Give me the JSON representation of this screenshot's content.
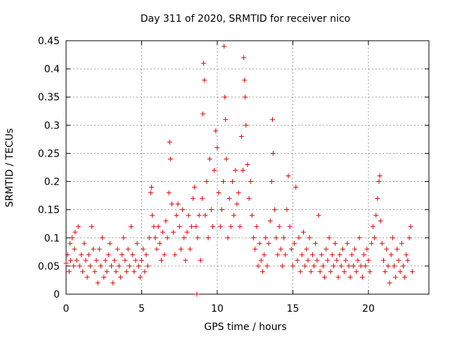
{
  "chart_data": {
    "type": "scatter",
    "title": "Day 311 of 2020, SRMTID for receiver nico",
    "xlabel": "GPS time / hours",
    "ylabel": "SRMTID / TECUs",
    "xlim": [
      0,
      24
    ],
    "ylim": [
      0,
      0.45
    ],
    "xticks": [
      0,
      5,
      10,
      15,
      20
    ],
    "yticks": [
      0,
      0.05,
      0.1,
      0.15,
      0.2,
      0.25,
      0.3,
      0.35,
      0.4,
      0.45
    ],
    "xtick_labels": [
      "0",
      "5",
      "10",
      "15",
      "20"
    ],
    "ytick_labels": [
      "0",
      "0.05",
      "0.1",
      "0.15",
      "0.2",
      "0.25",
      "0.3",
      "0.35",
      "0.4",
      "0.45"
    ],
    "marker": "+",
    "color": "#e00000",
    "grid": true,
    "series": [
      {
        "name": "SRMTID",
        "points": [
          [
            0.0,
            0.055
          ],
          [
            0.1,
            0.07
          ],
          [
            0.2,
            0.04
          ],
          [
            0.25,
            0.09
          ],
          [
            0.3,
            0.06
          ],
          [
            0.4,
            0.1
          ],
          [
            0.5,
            0.05
          ],
          [
            0.55,
            0.08
          ],
          [
            0.6,
            0.11
          ],
          [
            0.7,
            0.06
          ],
          [
            0.8,
            0.12
          ],
          [
            0.9,
            0.05
          ],
          [
            1.0,
            0.07
          ],
          [
            1.1,
            0.04
          ],
          [
            1.2,
            0.09
          ],
          [
            1.3,
            0.06
          ],
          [
            1.4,
            0.03
          ],
          [
            1.5,
            0.07
          ],
          [
            1.6,
            0.05
          ],
          [
            1.7,
            0.12
          ],
          [
            1.8,
            0.08
          ],
          [
            1.9,
            0.04
          ],
          [
            2.0,
            0.06
          ],
          [
            2.1,
            0.02
          ],
          [
            2.2,
            0.08
          ],
          [
            2.3,
            0.05
          ],
          [
            2.4,
            0.1
          ],
          [
            2.5,
            0.03
          ],
          [
            2.6,
            0.06
          ],
          [
            2.7,
            0.04
          ],
          [
            2.8,
            0.07
          ],
          [
            2.9,
            0.09
          ],
          [
            3.0,
            0.05
          ],
          [
            3.1,
            0.02
          ],
          [
            3.2,
            0.06
          ],
          [
            3.3,
            0.04
          ],
          [
            3.4,
            0.08
          ],
          [
            3.5,
            0.05
          ],
          [
            3.6,
            0.03
          ],
          [
            3.7,
            0.07
          ],
          [
            3.8,
            0.1
          ],
          [
            3.9,
            0.06
          ],
          [
            4.0,
            0.04
          ],
          [
            4.1,
            0.08
          ],
          [
            4.2,
            0.05
          ],
          [
            4.3,
            0.12
          ],
          [
            4.4,
            0.07
          ],
          [
            4.5,
            0.04
          ],
          [
            4.6,
            0.06
          ],
          [
            4.7,
            0.09
          ],
          [
            4.8,
            0.05
          ],
          [
            4.9,
            0.03
          ],
          [
            5.0,
            0.06
          ],
          [
            5.1,
            0.08
          ],
          [
            5.2,
            0.04
          ],
          [
            5.3,
            0.07
          ],
          [
            5.4,
            0.05
          ],
          [
            5.5,
            0.1
          ],
          [
            5.6,
            0.18
          ],
          [
            5.65,
            0.19
          ],
          [
            5.7,
            0.14
          ],
          [
            5.8,
            0.12
          ],
          [
            5.9,
            0.1
          ],
          [
            6.0,
            0.08
          ],
          [
            6.1,
            0.12
          ],
          [
            6.2,
            0.09
          ],
          [
            6.3,
            0.06
          ],
          [
            6.4,
            0.11
          ],
          [
            6.5,
            0.07
          ],
          [
            6.6,
            0.13
          ],
          [
            6.7,
            0.1
          ],
          [
            6.8,
            0.18
          ],
          [
            6.85,
            0.27
          ],
          [
            6.9,
            0.24
          ],
          [
            7.0,
            0.16
          ],
          [
            7.1,
            0.11
          ],
          [
            7.2,
            0.07
          ],
          [
            7.3,
            0.14
          ],
          [
            7.4,
            0.16
          ],
          [
            7.5,
            0.12
          ],
          [
            7.6,
            0.08
          ],
          [
            7.7,
            0.15
          ],
          [
            7.8,
            0.1
          ],
          [
            7.9,
            0.06
          ],
          [
            8.0,
            0.11
          ],
          [
            8.1,
            0.14
          ],
          [
            8.2,
            0.08
          ],
          [
            8.3,
            0.12
          ],
          [
            8.4,
            0.17
          ],
          [
            8.5,
            0.19
          ],
          [
            8.6,
            0.12
          ],
          [
            8.65,
            0.0
          ],
          [
            8.7,
            0.1
          ],
          [
            8.8,
            0.14
          ],
          [
            8.9,
            0.06
          ],
          [
            9.0,
            0.17
          ],
          [
            9.05,
            0.32
          ],
          [
            9.1,
            0.41
          ],
          [
            9.15,
            0.38
          ],
          [
            9.2,
            0.14
          ],
          [
            9.3,
            0.2
          ],
          [
            9.4,
            0.1
          ],
          [
            9.5,
            0.24
          ],
          [
            9.6,
            0.15
          ],
          [
            9.7,
            0.12
          ],
          [
            9.8,
            0.22
          ],
          [
            9.9,
            0.29
          ],
          [
            10.0,
            0.26
          ],
          [
            10.1,
            0.18
          ],
          [
            10.2,
            0.12
          ],
          [
            10.3,
            0.15
          ],
          [
            10.4,
            0.2
          ],
          [
            10.45,
            0.44
          ],
          [
            10.5,
            0.35
          ],
          [
            10.55,
            0.31
          ],
          [
            10.6,
            0.24
          ],
          [
            10.7,
            0.1
          ],
          [
            10.8,
            0.17
          ],
          [
            10.9,
            0.12
          ],
          [
            11.0,
            0.2
          ],
          [
            11.1,
            0.14
          ],
          [
            11.2,
            0.22
          ],
          [
            11.3,
            0.16
          ],
          [
            11.4,
            0.18
          ],
          [
            11.5,
            0.12
          ],
          [
            11.6,
            0.28
          ],
          [
            11.7,
            0.22
          ],
          [
            11.75,
            0.42
          ],
          [
            11.8,
            0.38
          ],
          [
            11.85,
            0.35
          ],
          [
            11.9,
            0.3
          ],
          [
            12.0,
            0.23
          ],
          [
            12.1,
            0.17
          ],
          [
            12.2,
            0.2
          ],
          [
            12.3,
            0.14
          ],
          [
            12.4,
            0.1
          ],
          [
            12.5,
            0.08
          ],
          [
            12.6,
            0.12
          ],
          [
            12.7,
            0.05
          ],
          [
            12.8,
            0.09
          ],
          [
            12.9,
            0.06
          ],
          [
            13.0,
            0.04
          ],
          [
            13.1,
            0.07
          ],
          [
            13.2,
            0.1
          ],
          [
            13.3,
            0.05
          ],
          [
            13.4,
            0.09
          ],
          [
            13.5,
            0.13
          ],
          [
            13.6,
            0.2
          ],
          [
            13.65,
            0.31
          ],
          [
            13.7,
            0.25
          ],
          [
            13.8,
            0.15
          ],
          [
            13.9,
            0.1
          ],
          [
            14.0,
            0.07
          ],
          [
            14.1,
            0.12
          ],
          [
            14.2,
            0.08
          ],
          [
            14.3,
            0.05
          ],
          [
            14.4,
            0.1
          ],
          [
            14.5,
            0.07
          ],
          [
            14.6,
            0.15
          ],
          [
            14.7,
            0.21
          ],
          [
            14.8,
            0.12
          ],
          [
            14.9,
            0.08
          ],
          [
            15.0,
            0.05
          ],
          [
            15.1,
            0.09
          ],
          [
            15.2,
            0.19
          ],
          [
            15.3,
            0.06
          ],
          [
            15.4,
            0.1
          ],
          [
            15.5,
            0.04
          ],
          [
            15.6,
            0.07
          ],
          [
            15.7,
            0.11
          ],
          [
            15.8,
            0.05
          ],
          [
            15.9,
            0.08
          ],
          [
            16.0,
            0.06
          ],
          [
            16.1,
            0.1
          ],
          [
            16.2,
            0.04
          ],
          [
            16.3,
            0.07
          ],
          [
            16.4,
            0.05
          ],
          [
            16.5,
            0.09
          ],
          [
            16.6,
            0.06
          ],
          [
            16.7,
            0.14
          ],
          [
            16.8,
            0.04
          ],
          [
            16.9,
            0.07
          ],
          [
            17.0,
            0.05
          ],
          [
            17.1,
            0.03
          ],
          [
            17.2,
            0.08
          ],
          [
            17.3,
            0.06
          ],
          [
            17.4,
            0.1
          ],
          [
            17.5,
            0.04
          ],
          [
            17.6,
            0.07
          ],
          [
            17.7,
            0.05
          ],
          [
            17.8,
            0.09
          ],
          [
            17.9,
            0.06
          ],
          [
            18.0,
            0.03
          ],
          [
            18.1,
            0.07
          ],
          [
            18.2,
            0.05
          ],
          [
            18.3,
            0.08
          ],
          [
            18.4,
            0.04
          ],
          [
            18.5,
            0.06
          ],
          [
            18.6,
            0.09
          ],
          [
            18.7,
            0.05
          ],
          [
            18.8,
            0.03
          ],
          [
            18.9,
            0.07
          ],
          [
            19.0,
            0.05
          ],
          [
            19.1,
            0.08
          ],
          [
            19.2,
            0.04
          ],
          [
            19.3,
            0.06
          ],
          [
            19.4,
            0.1
          ],
          [
            19.5,
            0.05
          ],
          [
            19.6,
            0.03
          ],
          [
            19.7,
            0.07
          ],
          [
            19.8,
            0.05
          ],
          [
            19.9,
            0.08
          ],
          [
            20.0,
            0.06
          ],
          [
            20.1,
            0.04
          ],
          [
            20.2,
            0.09
          ],
          [
            20.3,
            0.12
          ],
          [
            20.4,
            0.1
          ],
          [
            20.5,
            0.14
          ],
          [
            20.6,
            0.17
          ],
          [
            20.7,
            0.2
          ],
          [
            20.75,
            0.21
          ],
          [
            20.8,
            0.13
          ],
          [
            20.9,
            0.09
          ],
          [
            21.0,
            0.06
          ],
          [
            21.1,
            0.04
          ],
          [
            21.2,
            0.08
          ],
          [
            21.3,
            0.05
          ],
          [
            21.4,
            0.02
          ],
          [
            21.5,
            0.07
          ],
          [
            21.6,
            0.1
          ],
          [
            21.7,
            0.05
          ],
          [
            21.8,
            0.03
          ],
          [
            21.9,
            0.08
          ],
          [
            22.0,
            0.06
          ],
          [
            22.1,
            0.04
          ],
          [
            22.2,
            0.09
          ],
          [
            22.3,
            0.05
          ],
          [
            22.4,
            0.03
          ],
          [
            22.5,
            0.07
          ],
          [
            22.6,
            0.06
          ],
          [
            22.7,
            0.1
          ],
          [
            22.8,
            0.12
          ],
          [
            22.9,
            0.04
          ]
        ]
      }
    ]
  }
}
